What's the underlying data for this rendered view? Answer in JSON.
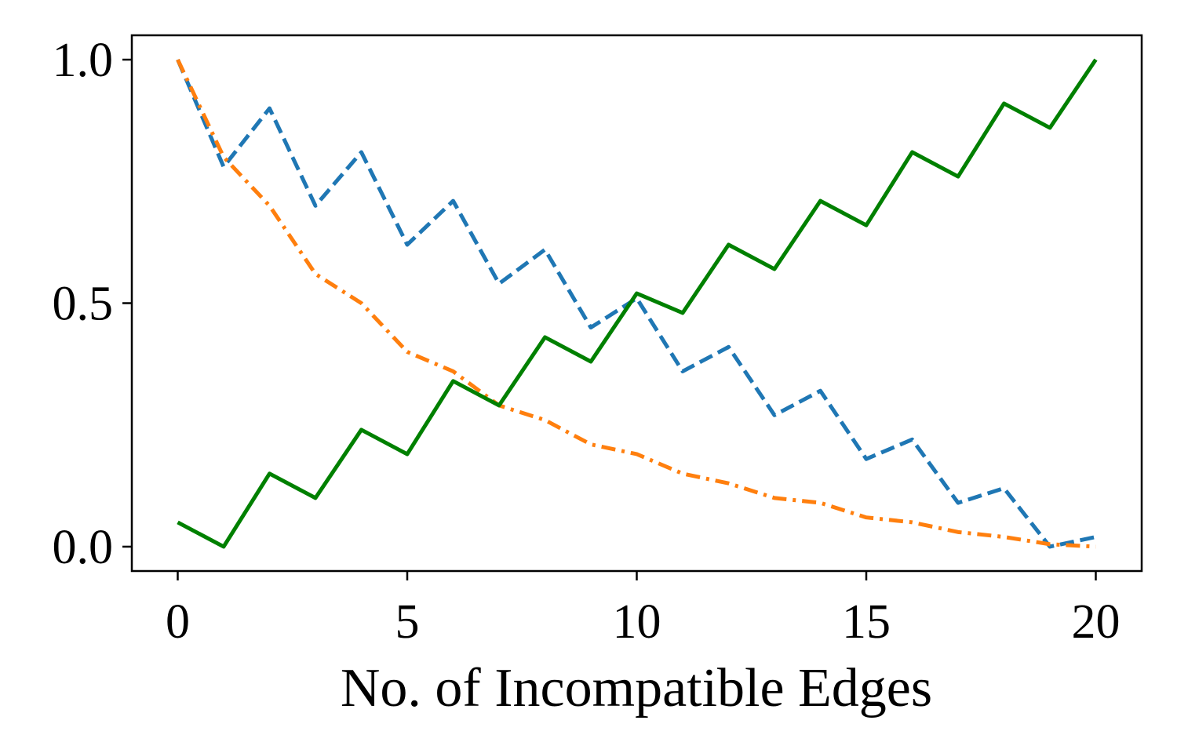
{
  "chart_data": {
    "type": "line",
    "title": "",
    "xlabel": "No. of Incompatible Edges",
    "ylabel": "",
    "xlim": [
      -1,
      21
    ],
    "ylim": [
      -0.05,
      1.05
    ],
    "xticks": [
      0,
      5,
      10,
      15,
      20
    ],
    "xtick_labels": [
      "0",
      "5",
      "10",
      "15",
      "20"
    ],
    "yticks": [
      0.0,
      0.5,
      1.0
    ],
    "ytick_labels": [
      "0.0",
      "0.5",
      "1.0"
    ],
    "grid": false,
    "legend": "none",
    "x": [
      0,
      1,
      2,
      3,
      4,
      5,
      6,
      7,
      8,
      9,
      10,
      11,
      12,
      13,
      14,
      15,
      16,
      17,
      18,
      19,
      20
    ],
    "series": [
      {
        "color": "#1f77b4",
        "style": "dashed",
        "values": [
          1.0,
          0.78,
          0.9,
          0.7,
          0.81,
          0.62,
          0.71,
          0.54,
          0.61,
          0.45,
          0.51,
          0.36,
          0.41,
          0.27,
          0.32,
          0.18,
          0.22,
          0.09,
          0.12,
          0.0,
          0.02
        ]
      },
      {
        "color": "#ff7f0e",
        "style": "dashdot",
        "values": [
          1.0,
          0.8,
          0.7,
          0.56,
          0.5,
          0.4,
          0.36,
          0.29,
          0.26,
          0.21,
          0.19,
          0.15,
          0.13,
          0.1,
          0.09,
          0.06,
          0.05,
          0.03,
          0.02,
          0.005,
          0.0
        ]
      },
      {
        "color": "#008000",
        "style": "solid",
        "values": [
          0.05,
          0.0,
          0.15,
          0.1,
          0.24,
          0.19,
          0.34,
          0.29,
          0.43,
          0.38,
          0.52,
          0.48,
          0.62,
          0.57,
          0.71,
          0.66,
          0.81,
          0.76,
          0.91,
          0.86,
          1.0
        ]
      }
    ]
  }
}
